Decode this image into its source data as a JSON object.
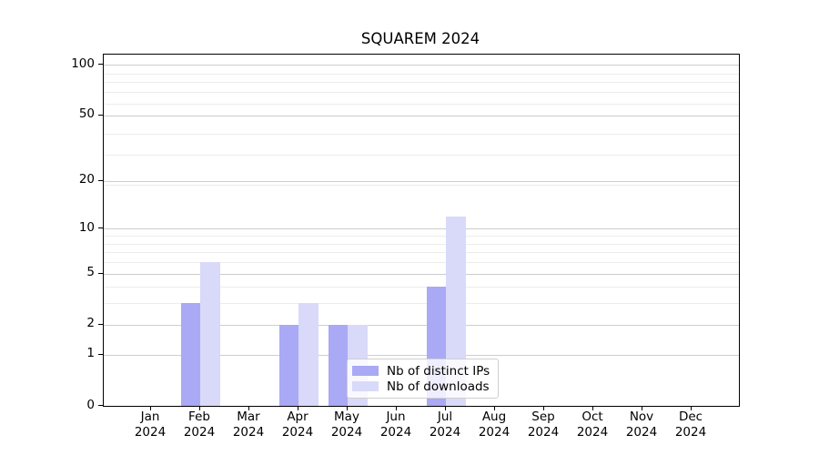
{
  "chart_data": {
    "type": "bar",
    "title": "SQUAREM 2024",
    "categories": [
      "Jan",
      "Feb",
      "Mar",
      "Apr",
      "May",
      "Jun",
      "Jul",
      "Aug",
      "Sep",
      "Oct",
      "Nov",
      "Dec"
    ],
    "x_year_label": "2024",
    "series": [
      {
        "name": "Nb of distinct IPs",
        "color": "#a9a9f5",
        "values": [
          0,
          3,
          0,
          2,
          2,
          0,
          4,
          0,
          0,
          0,
          0,
          0
        ]
      },
      {
        "name": "Nb of downloads",
        "color": "#d9d9fa",
        "values": [
          0,
          6,
          0,
          3,
          2,
          0,
          12,
          0,
          0,
          0,
          0,
          0
        ]
      }
    ],
    "y_scale": "log10(1+y)",
    "y_ticks": [
      0,
      1,
      2,
      5,
      10,
      20,
      50,
      100
    ],
    "y_minor_ticks": [
      3,
      4,
      6,
      7,
      8,
      9,
      19,
      29,
      39,
      59,
      69,
      79,
      89
    ],
    "ylim": [
      0,
      115
    ],
    "grid": true,
    "legend_position": "lower center, inside plot",
    "colors": {
      "major_grid": "#cdcdcd",
      "minor_grid": "#ececec",
      "axis": "#000000",
      "text": "#000000"
    }
  }
}
